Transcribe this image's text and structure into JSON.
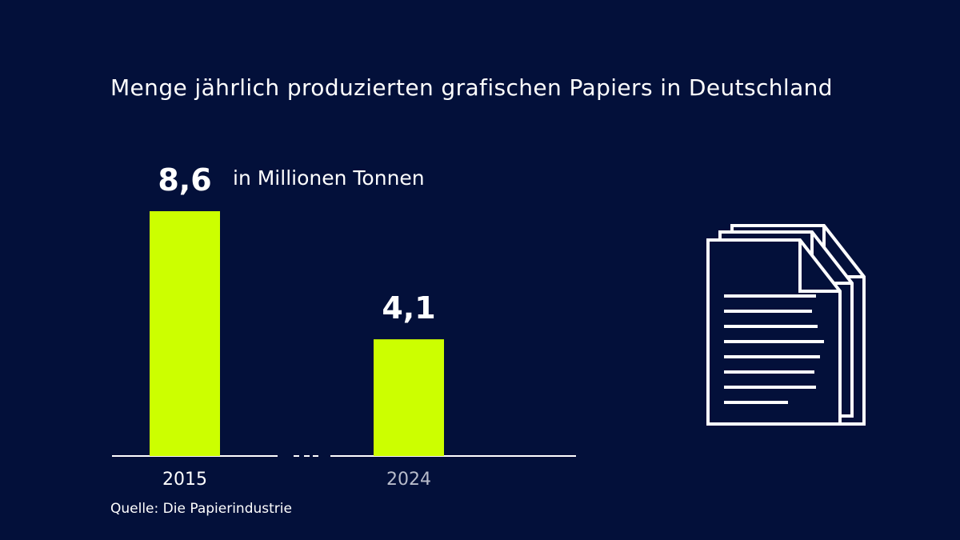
{
  "title": "Menge jährlich produzierten grafischen Papiers in Deutschland",
  "unit": "in Millionen Tonnen",
  "source": "Quelle: Die Papierindustrie",
  "colors": {
    "background": "#03103a",
    "bar": "#ccff00",
    "text": "#ffffff",
    "muted_tick": "#b8bccb"
  },
  "icon": "document-stack-icon",
  "chart_data": {
    "type": "bar",
    "categories": [
      "2015",
      "2024"
    ],
    "values": [
      8.6,
      4.1
    ],
    "value_labels": [
      "8,6",
      "4,1"
    ],
    "ylim": [
      0,
      8.6
    ],
    "axis_break_between_categories": true,
    "grid": false
  }
}
